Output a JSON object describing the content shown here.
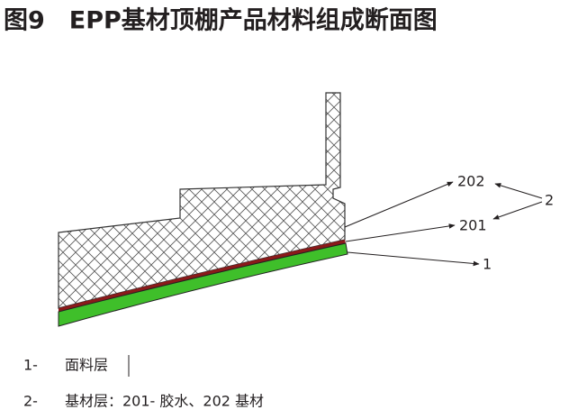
{
  "title": "图9　EPP基材顶棚产品材料组成断面图",
  "labels": {
    "l202": "202",
    "l201": "201",
    "l1": "1",
    "l2": "2"
  },
  "legend": [
    {
      "num": "1-",
      "text": "面料层"
    },
    {
      "num": "2-",
      "text": "基材层：201- 胶水、202 基材"
    }
  ]
}
